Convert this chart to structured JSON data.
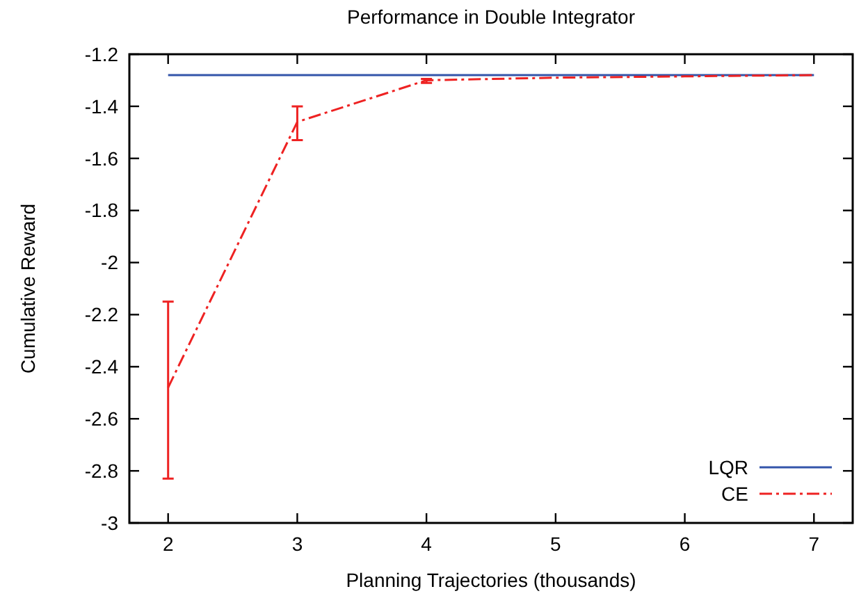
{
  "chart_data": {
    "type": "line",
    "title": "Performance in Double Integrator",
    "xlabel": "Planning Trajectories (thousands)",
    "ylabel": "Cumulative Reward",
    "x": [
      2,
      3,
      4,
      5,
      6,
      7
    ],
    "xlim": [
      1.7,
      7.3
    ],
    "xticks": [
      2,
      3,
      4,
      5,
      6,
      7
    ],
    "ylim": [
      -3,
      -1.2
    ],
    "yticks": [
      -3,
      -2.8,
      -2.6,
      -2.4,
      -2.2,
      -2,
      -1.8,
      -1.6,
      -1.4,
      -1.2
    ],
    "grid": false,
    "legend": "bottom right",
    "marker": "none",
    "series": [
      {
        "name": "LQR",
        "color": "#3355aa",
        "line_style": "solid",
        "values": [
          -1.28,
          -1.28,
          -1.28,
          -1.28,
          -1.28,
          -1.28
        ]
      },
      {
        "name": "CE",
        "color": "#ee2222",
        "line_style": "dashed",
        "values": [
          -2.48,
          -1.46,
          -1.3,
          -1.29,
          -1.285,
          -1.28
        ],
        "errors": [
          [
            -2.83,
            -2.15
          ],
          [
            -1.53,
            -1.4
          ],
          [
            -1.31,
            -1.295
          ],
          null,
          null,
          null
        ]
      }
    ]
  }
}
